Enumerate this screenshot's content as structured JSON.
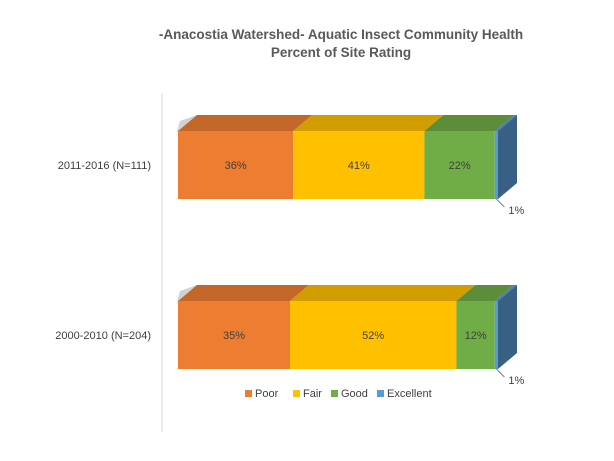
{
  "chart_data": {
    "type": "bar",
    "orientation": "horizontal",
    "stacked": true,
    "percent": true,
    "three_d": true,
    "title": "-Anacostia Watershed- Aquatic Insect Community Health",
    "subtitle": "Percent of Site Rating",
    "categories": [
      "2011-2016 (N=111)",
      "2000-2010 (N=204)"
    ],
    "series": [
      {
        "name": "Poor",
        "values": [
          36,
          35
        ],
        "labels": [
          "36%",
          "35%"
        ],
        "color": "#ED7D31"
      },
      {
        "name": "Fair",
        "values": [
          41,
          52
        ],
        "labels": [
          "41%",
          "52%"
        ],
        "color": "#FFC000"
      },
      {
        "name": "Good",
        "values": [
          22,
          12
        ],
        "labels": [
          "22%",
          "12%"
        ],
        "color": "#70AD47"
      },
      {
        "name": "Excellent",
        "values": [
          1,
          1
        ],
        "labels": [
          "1%",
          "1%"
        ],
        "color": "#5B9BD5"
      }
    ],
    "xlim": [
      0,
      100
    ],
    "grid": false,
    "legend": "bottom"
  }
}
